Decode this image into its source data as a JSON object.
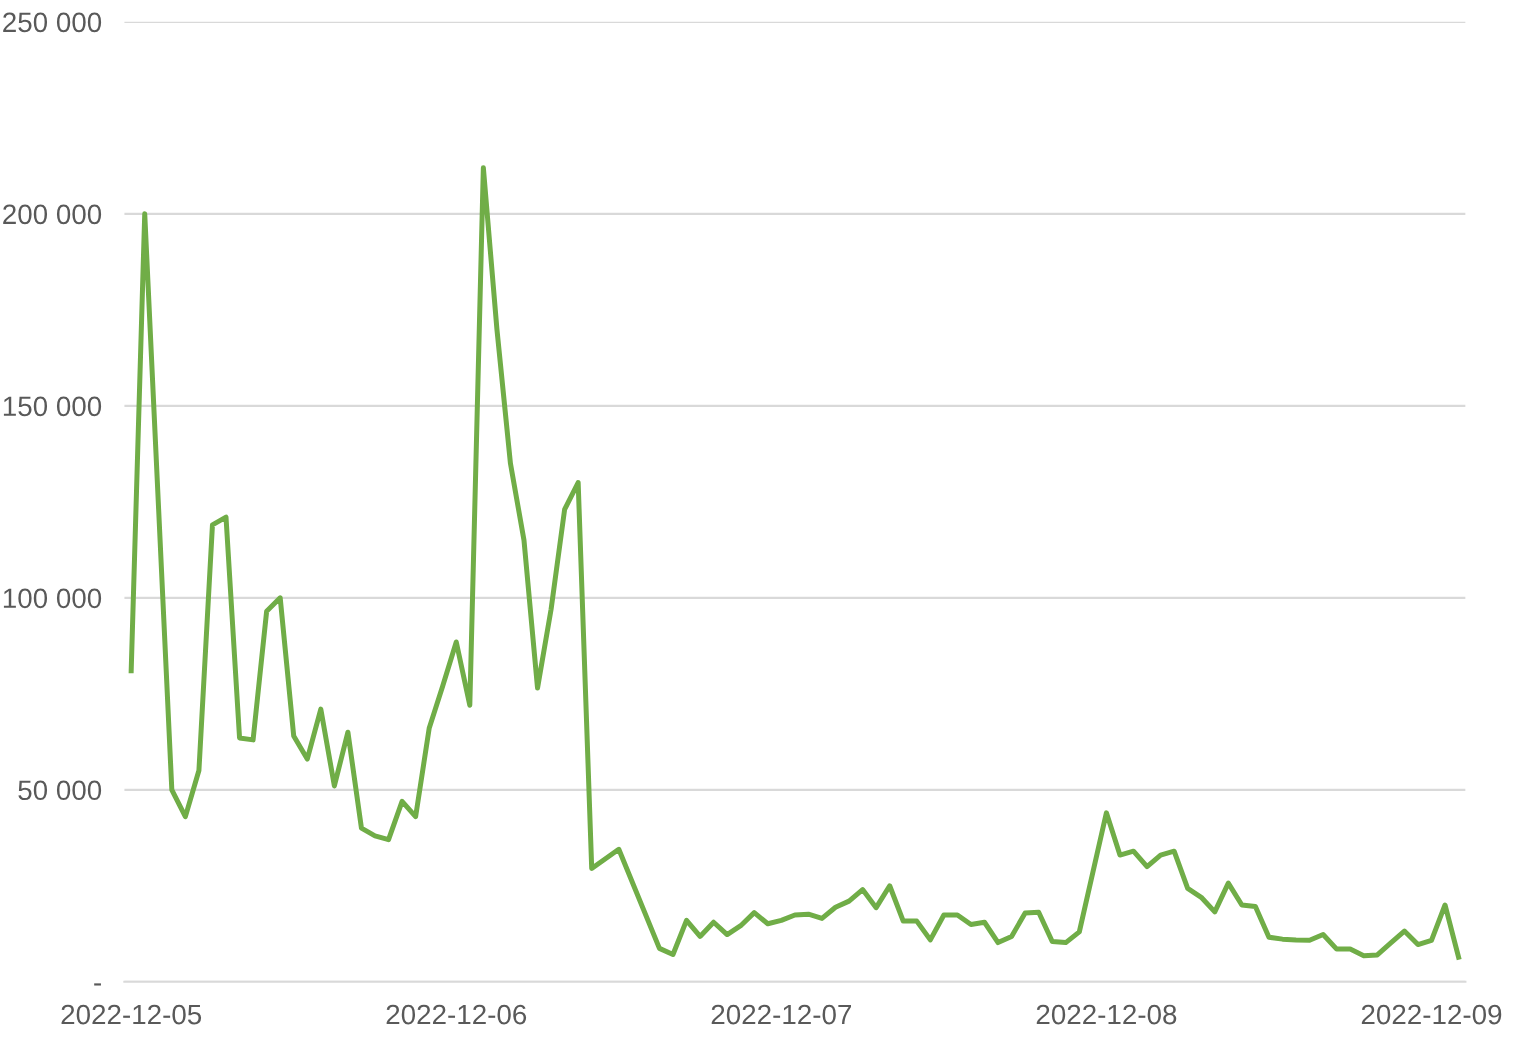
{
  "chart_data": {
    "type": "line",
    "color": "#70ad47",
    "x": [
      "2022-12-05T00:00",
      "2022-12-05T01:00",
      "2022-12-05T03:00",
      "2022-12-05T04:00",
      "2022-12-05T05:00",
      "2022-12-05T06:00",
      "2022-12-05T07:00",
      "2022-12-05T08:00",
      "2022-12-05T09:00",
      "2022-12-05T10:00",
      "2022-12-05T11:00",
      "2022-12-05T12:00",
      "2022-12-05T13:00",
      "2022-12-05T14:00",
      "2022-12-05T15:00",
      "2022-12-05T16:00",
      "2022-12-05T17:00",
      "2022-12-05T18:00",
      "2022-12-05T19:00",
      "2022-12-05T20:00",
      "2022-12-05T21:00",
      "2022-12-05T22:00",
      "2022-12-05T23:00",
      "2022-12-06T00:00",
      "2022-12-06T01:00",
      "2022-12-06T02:00",
      "2022-12-06T03:00",
      "2022-12-06T04:00",
      "2022-12-06T05:00",
      "2022-12-06T06:00",
      "2022-12-06T07:00",
      "2022-12-06T08:00",
      "2022-12-06T09:00",
      "2022-12-06T10:00",
      "2022-12-06T12:00",
      "2022-12-06T15:00",
      "2022-12-06T16:00",
      "2022-12-06T17:00",
      "2022-12-06T18:00",
      "2022-12-06T19:00",
      "2022-12-06T20:00",
      "2022-12-06T21:00",
      "2022-12-06T22:00",
      "2022-12-06T23:00",
      "2022-12-07T00:00",
      "2022-12-07T01:00",
      "2022-12-07T02:00",
      "2022-12-07T03:00",
      "2022-12-07T04:00",
      "2022-12-07T05:00",
      "2022-12-07T06:00",
      "2022-12-07T07:00",
      "2022-12-07T08:00",
      "2022-12-07T09:00",
      "2022-12-07T10:00",
      "2022-12-07T11:00",
      "2022-12-07T12:00",
      "2022-12-07T13:00",
      "2022-12-07T14:00",
      "2022-12-07T15:00",
      "2022-12-07T16:00",
      "2022-12-07T17:00",
      "2022-12-07T18:00",
      "2022-12-07T19:00",
      "2022-12-07T20:00",
      "2022-12-07T21:00",
      "2022-12-07T22:00",
      "2022-12-08T00:00",
      "2022-12-08T01:00",
      "2022-12-08T02:00",
      "2022-12-08T03:00",
      "2022-12-08T04:00",
      "2022-12-08T05:00",
      "2022-12-08T06:00",
      "2022-12-08T07:00",
      "2022-12-08T08:00",
      "2022-12-08T09:00",
      "2022-12-08T10:00",
      "2022-12-08T11:00",
      "2022-12-08T12:00",
      "2022-12-08T13:00",
      "2022-12-08T14:00",
      "2022-12-08T15:00",
      "2022-12-08T16:00",
      "2022-12-08T17:00",
      "2022-12-08T18:00",
      "2022-12-08T19:00",
      "2022-12-08T20:00",
      "2022-12-08T21:00",
      "2022-12-08T22:00",
      "2022-12-08T23:00",
      "2022-12-09T00:00",
      "2022-12-09T01:00",
      "2022-12-09T02:00"
    ],
    "values": [
      81000,
      200000,
      50000,
      43000,
      55000,
      119000,
      121000,
      63500,
      63000,
      96500,
      100000,
      64000,
      58000,
      71000,
      51000,
      65000,
      40000,
      38000,
      37000,
      47000,
      43000,
      66000,
      77000,
      88500,
      72000,
      212000,
      170000,
      135000,
      115000,
      76500,
      97000,
      123000,
      130000,
      29500,
      34500,
      8700,
      7100,
      16000,
      11800,
      15500,
      12300,
      14600,
      18000,
      15100,
      16000,
      17400,
      17600,
      16500,
      19400,
      21000,
      24000,
      19300,
      25000,
      15800,
      15800,
      10900,
      17400,
      17400,
      14900,
      15500,
      10200,
      11800,
      17900,
      18100,
      10500,
      10200,
      13000,
      44000,
      33000,
      34000,
      30000,
      33000,
      34000,
      24300,
      22000,
      18200,
      25700,
      20000,
      19600,
      11600,
      11100,
      10900,
      10800,
      12300,
      8500,
      8500,
      6800,
      7000,
      10100,
      13200,
      9700,
      10800,
      20000,
      6400
    ],
    "xlim": [
      "2022-12-04T23:30",
      "2022-12-09T02:30"
    ],
    "xticks": [
      "2022-12-05",
      "2022-12-06",
      "2022-12-07",
      "2022-12-08",
      "2022-12-09"
    ],
    "ylim": [
      0,
      250000
    ],
    "yticks": [
      {
        "value": 0,
        "label": "-"
      },
      {
        "value": 50000,
        "label": "50 000"
      },
      {
        "value": 100000,
        "label": "100 000"
      },
      {
        "value": 150000,
        "label": "150 000"
      },
      {
        "value": 200000,
        "label": "200 000"
      },
      {
        "value": 250000,
        "label": "250 000"
      }
    ],
    "grid": "y"
  }
}
